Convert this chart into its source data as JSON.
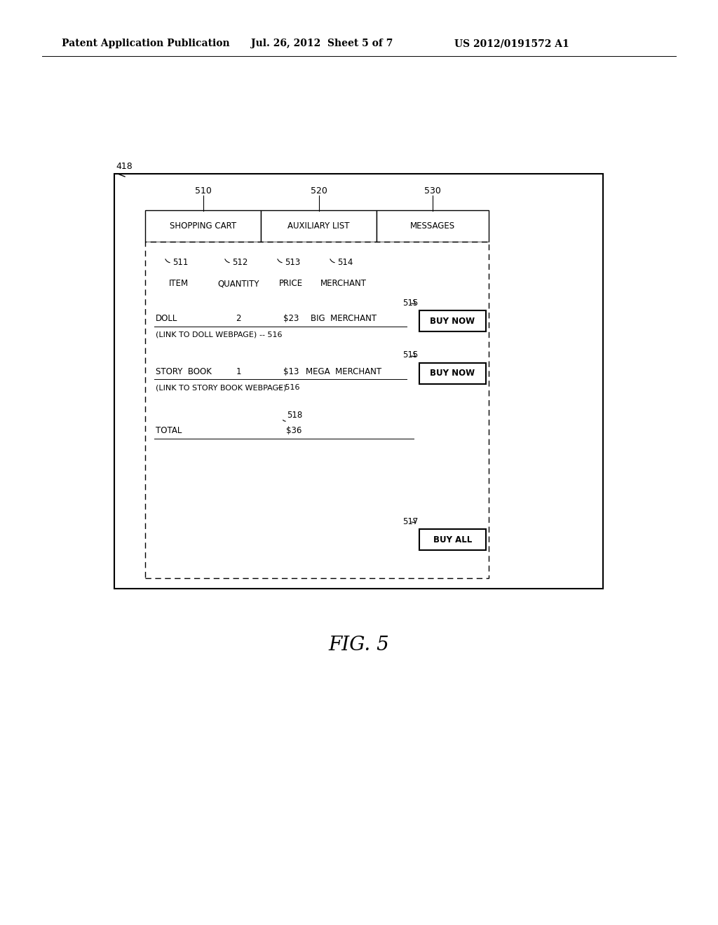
{
  "header_left": "Patent Application Publication",
  "header_mid": "Jul. 26, 2012  Sheet 5 of 7",
  "header_right": "US 2012/0191572 A1",
  "fig_label": "FIG. 5",
  "outer_box_label": "418",
  "tab_labels": [
    "SHOPPING CART",
    "AUXILIARY LIST",
    "MESSAGES"
  ],
  "tab_numbers": [
    "510",
    "520",
    "530"
  ],
  "col_headers": [
    "ITEM",
    "QUANTITY",
    "PRICE",
    "MERCHANT"
  ],
  "col_numbers": [
    "511",
    "512",
    "513",
    "514"
  ],
  "row1_item": "DOLL",
  "row1_qty": "2",
  "row1_price": "$23",
  "row1_merchant": "BIG  MERCHANT",
  "row1_link": "(LINK TO DOLL WEBPAGE)",
  "row1_link_num": "516",
  "row2_item": "STORY  BOOK",
  "row2_qty": "1",
  "row2_price": "$13",
  "row2_merchant": "MEGA  MERCHANT",
  "row2_link": "(LINK TO STORY BOOK WEBPAGE)",
  "row2_link_num": "516",
  "total_label": "TOTAL",
  "total_value": "$36",
  "total_num": "518",
  "buy_now_label": "BUY NOW",
  "buy_all_label": "BUY ALL",
  "btn_num_515a": "515",
  "btn_num_515b": "515",
  "btn_num_517": "517",
  "bg_color": "#ffffff",
  "border_color": "#000000"
}
